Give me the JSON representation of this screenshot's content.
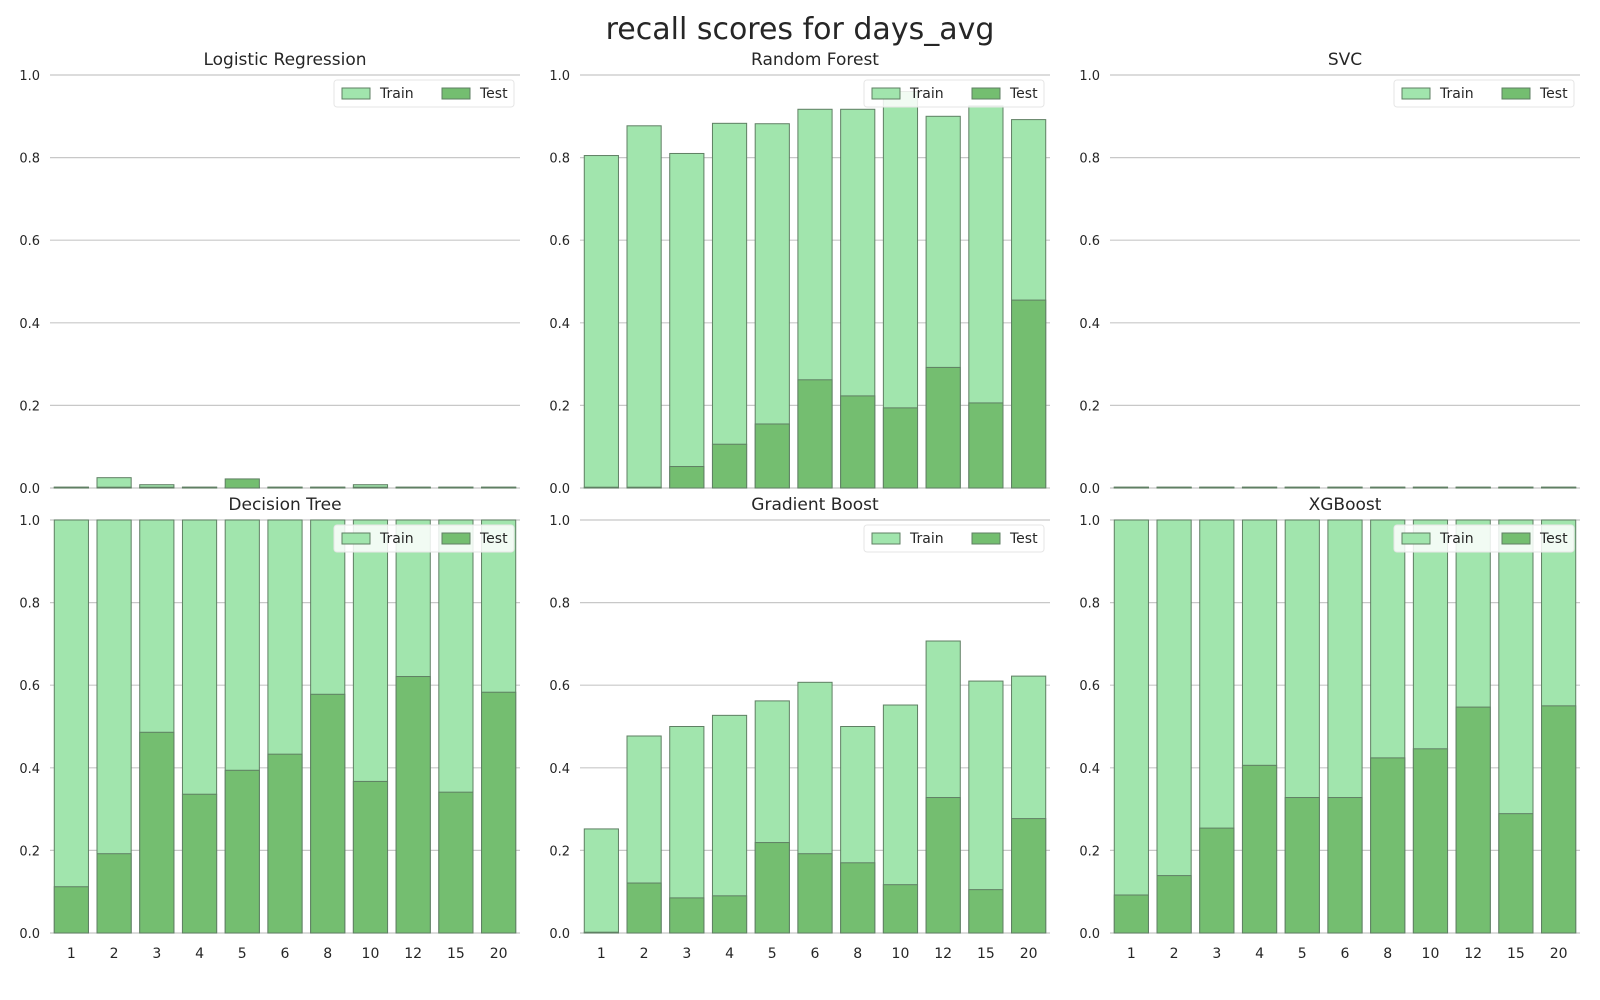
{
  "figure": {
    "title": "recall scores for days_avg"
  },
  "colors": {
    "train": "#a1e5ad",
    "test": "#74be70",
    "edge": "#5f7f63",
    "grid": "#c8c8c8",
    "text": "#262626",
    "legend_bg": "#ffffff"
  },
  "chart_data": [
    {
      "type": "bar",
      "title": "Logistic Regression",
      "categories": [
        "1",
        "2",
        "3",
        "4",
        "5",
        "6",
        "8",
        "10",
        "12",
        "15",
        "20"
      ],
      "ylim": [
        0,
        1.0
      ],
      "yticks": [
        "0.0",
        "0.2",
        "0.4",
        "0.6",
        "0.8",
        "1.0"
      ],
      "grid": true,
      "legend": "top-right",
      "show_xticks": false,
      "series": [
        {
          "name": "Train",
          "values": [
            0.0,
            0.025,
            0.008,
            0.0,
            0.0,
            0.0,
            0.0,
            0.008,
            0.0,
            0.0,
            0.0
          ]
        },
        {
          "name": "Test",
          "values": [
            0.0,
            0.0,
            0.0,
            0.0,
            0.022,
            0.0,
            0.0,
            0.0,
            0.0,
            0.0,
            0.0
          ]
        }
      ]
    },
    {
      "type": "bar",
      "title": "Random Forest",
      "categories": [
        "1",
        "2",
        "3",
        "4",
        "5",
        "6",
        "8",
        "10",
        "12",
        "15",
        "20"
      ],
      "ylim": [
        0,
        1.0
      ],
      "yticks": [
        "0.0",
        "0.2",
        "0.4",
        "0.6",
        "0.8",
        "1.0"
      ],
      "grid": true,
      "legend": "top-right",
      "show_xticks": false,
      "series": [
        {
          "name": "Train",
          "values": [
            0.805,
            0.877,
            0.81,
            0.883,
            0.882,
            0.917,
            0.917,
            0.96,
            0.9,
            0.925,
            0.892
          ]
        },
        {
          "name": "Test",
          "values": [
            0.0,
            0.0,
            0.052,
            0.106,
            0.155,
            0.262,
            0.223,
            0.194,
            0.292,
            0.206,
            0.455
          ]
        }
      ]
    },
    {
      "type": "bar",
      "title": "SVC",
      "categories": [
        "1",
        "2",
        "3",
        "4",
        "5",
        "6",
        "8",
        "10",
        "12",
        "15",
        "20"
      ],
      "ylim": [
        0,
        1.0
      ],
      "yticks": [
        "0.0",
        "0.2",
        "0.4",
        "0.6",
        "0.8",
        "1.0"
      ],
      "grid": true,
      "legend": "top-right",
      "show_xticks": false,
      "series": [
        {
          "name": "Train",
          "values": [
            0,
            0,
            0,
            0,
            0,
            0,
            0,
            0,
            0,
            0,
            0
          ]
        },
        {
          "name": "Test",
          "values": [
            0,
            0,
            0,
            0,
            0,
            0,
            0,
            0,
            0,
            0,
            0
          ]
        }
      ]
    },
    {
      "type": "bar",
      "title": "Decision Tree",
      "categories": [
        "1",
        "2",
        "3",
        "4",
        "5",
        "6",
        "8",
        "10",
        "12",
        "15",
        "20"
      ],
      "ylim": [
        0,
        1.0
      ],
      "yticks": [
        "0.0",
        "0.2",
        "0.4",
        "0.6",
        "0.8",
        "1.0"
      ],
      "grid": true,
      "legend": "top-right",
      "show_xticks": true,
      "series": [
        {
          "name": "Train",
          "values": [
            1.0,
            1.0,
            1.0,
            1.0,
            1.0,
            1.0,
            1.0,
            1.0,
            1.0,
            1.0,
            1.0
          ]
        },
        {
          "name": "Test",
          "values": [
            0.112,
            0.192,
            0.486,
            0.336,
            0.394,
            0.433,
            0.578,
            0.367,
            0.621,
            0.341,
            0.583
          ]
        }
      ]
    },
    {
      "type": "bar",
      "title": "Gradient Boost",
      "categories": [
        "1",
        "2",
        "3",
        "4",
        "5",
        "6",
        "8",
        "10",
        "12",
        "15",
        "20"
      ],
      "ylim": [
        0,
        1.0
      ],
      "yticks": [
        "0.0",
        "0.2",
        "0.4",
        "0.6",
        "0.8",
        "1.0"
      ],
      "grid": true,
      "legend": "top-right",
      "show_xticks": true,
      "series": [
        {
          "name": "Train",
          "values": [
            0.252,
            0.477,
            0.5,
            0.527,
            0.562,
            0.607,
            0.5,
            0.552,
            0.707,
            0.61,
            0.622
          ]
        },
        {
          "name": "Test",
          "values": [
            0.0,
            0.121,
            0.085,
            0.09,
            0.219,
            0.192,
            0.17,
            0.117,
            0.328,
            0.105,
            0.277
          ]
        }
      ]
    },
    {
      "type": "bar",
      "title": "XGBoost",
      "categories": [
        "1",
        "2",
        "3",
        "4",
        "5",
        "6",
        "8",
        "10",
        "12",
        "15",
        "20"
      ],
      "ylim": [
        0,
        1.0
      ],
      "yticks": [
        "0.0",
        "0.2",
        "0.4",
        "0.6",
        "0.8",
        "1.0"
      ],
      "grid": true,
      "legend": "top-right",
      "show_xticks": true,
      "series": [
        {
          "name": "Train",
          "values": [
            1.0,
            1.0,
            1.0,
            1.0,
            1.0,
            1.0,
            1.0,
            1.0,
            1.0,
            1.0,
            1.0
          ]
        },
        {
          "name": "Test",
          "values": [
            0.092,
            0.139,
            0.254,
            0.406,
            0.328,
            0.328,
            0.424,
            0.446,
            0.547,
            0.289,
            0.55
          ]
        }
      ]
    }
  ]
}
